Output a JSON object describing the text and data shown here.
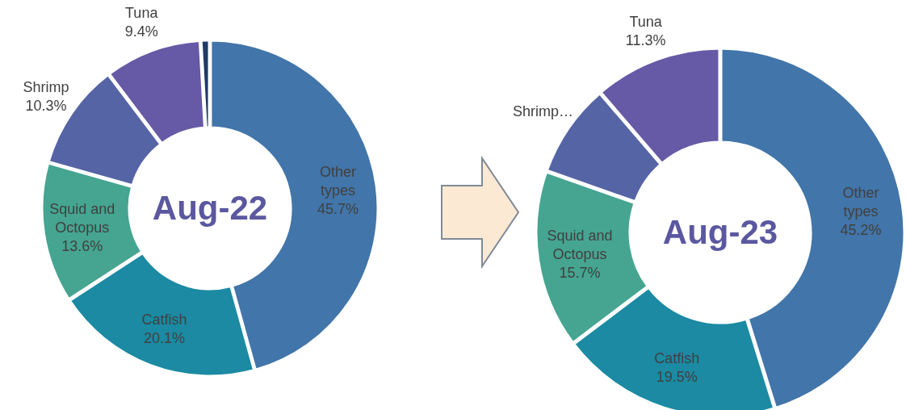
{
  "chart_data": [
    {
      "type": "donut",
      "title": "Aug-22",
      "categories": [
        "Other types",
        "Catfish",
        "Squid and Octopus",
        "Shrimp",
        "Tuna",
        null
      ],
      "values": [
        45.7,
        20.1,
        13.6,
        10.3,
        9.4,
        0.9
      ],
      "colors": [
        "#4275a9",
        "#1b8aa2",
        "#45a590",
        "#5564a5",
        "#6659a5",
        "#1f3b66"
      ],
      "value_labels": [
        "45.7%",
        "20.1%",
        "13.6%",
        "10.3%",
        "9.4%",
        null
      ]
    },
    {
      "type": "donut",
      "title": "Aug-23",
      "categories": [
        "Other types",
        "Catfish",
        "Squid and Octopus",
        "Shrimp…",
        "Tuna"
      ],
      "values": [
        45.2,
        19.5,
        15.7,
        8.3,
        11.3
      ],
      "colors": [
        "#4275a9",
        "#1b8aa2",
        "#45a590",
        "#5564a5",
        "#6659a5"
      ],
      "value_labels": [
        "45.2%",
        "19.5%",
        "15.7%",
        null,
        "11.3%"
      ]
    }
  ]
}
